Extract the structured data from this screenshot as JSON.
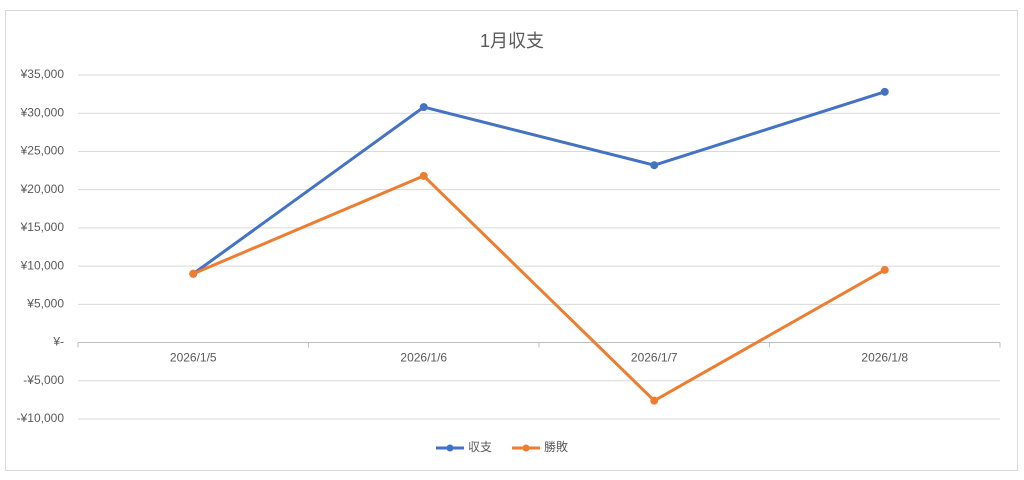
{
  "chart_data": {
    "type": "line",
    "title": "1月収支",
    "categories": [
      "2026/1/5",
      "2026/1/6",
      "2026/1/7",
      "2026/1/8"
    ],
    "series": [
      {
        "name": "収支",
        "color": "#4472c4",
        "values": [
          9000,
          30800,
          23200,
          32800
        ]
      },
      {
        "name": "勝敗",
        "color": "#ed7d31",
        "values": [
          9000,
          21800,
          -7600,
          9500
        ]
      }
    ],
    "ylim": [
      -10000,
      35000
    ],
    "yticks": [
      {
        "value": -10000,
        "label": "-¥10,000"
      },
      {
        "value": -5000,
        "label": "-¥5,000"
      },
      {
        "value": 0,
        "label": "¥-"
      },
      {
        "value": 5000,
        "label": "¥5,000"
      },
      {
        "value": 10000,
        "label": "¥10,000"
      },
      {
        "value": 15000,
        "label": "¥15,000"
      },
      {
        "value": 20000,
        "label": "¥20,000"
      },
      {
        "value": 25000,
        "label": "¥25,000"
      },
      {
        "value": 30000,
        "label": "¥30,000"
      },
      {
        "value": 35000,
        "label": "¥35,000"
      }
    ],
    "grid": true,
    "legend": "bottom"
  }
}
